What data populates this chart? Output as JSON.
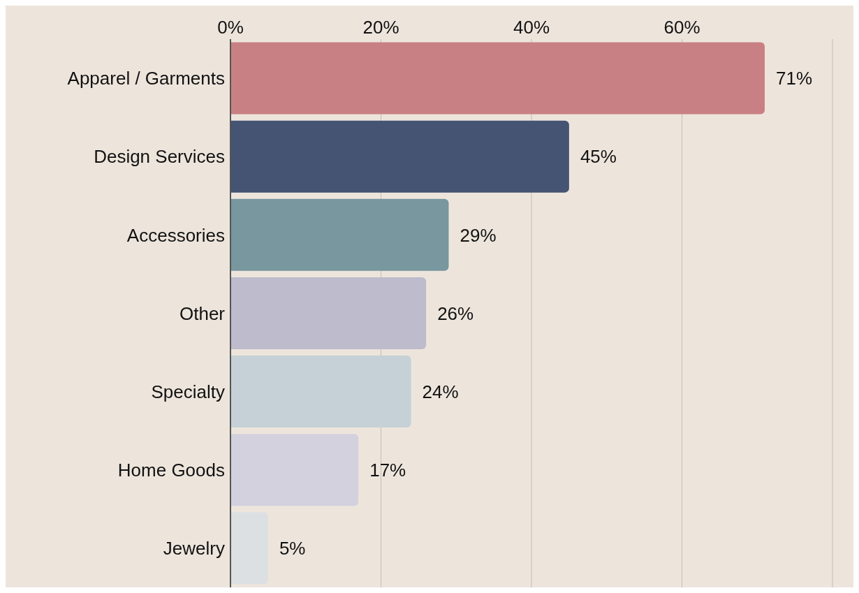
{
  "chart_data": {
    "type": "bar",
    "orientation": "horizontal",
    "categories": [
      "Apparel / Garments",
      "Design Services",
      "Accessories",
      "Other",
      "Specialty",
      "Home Goods",
      "Jewelry"
    ],
    "values": [
      71,
      45,
      29,
      26,
      24,
      17,
      5
    ],
    "colors": [
      "#c98084",
      "#465473",
      "#78979e",
      "#bdbbcc",
      "#c5d1d6",
      "#d3d1de",
      "#dce0e3"
    ],
    "value_labels": [
      "71%",
      "45%",
      "29%",
      "26%",
      "24%",
      "17%",
      "5%"
    ],
    "xlim": [
      0,
      80
    ],
    "xticks": [
      {
        "value": 0,
        "label": "0%"
      },
      {
        "value": 20,
        "label": "20%"
      },
      {
        "value": 40,
        "label": "40%"
      },
      {
        "value": 60,
        "label": "60%"
      }
    ],
    "grid": "x"
  }
}
